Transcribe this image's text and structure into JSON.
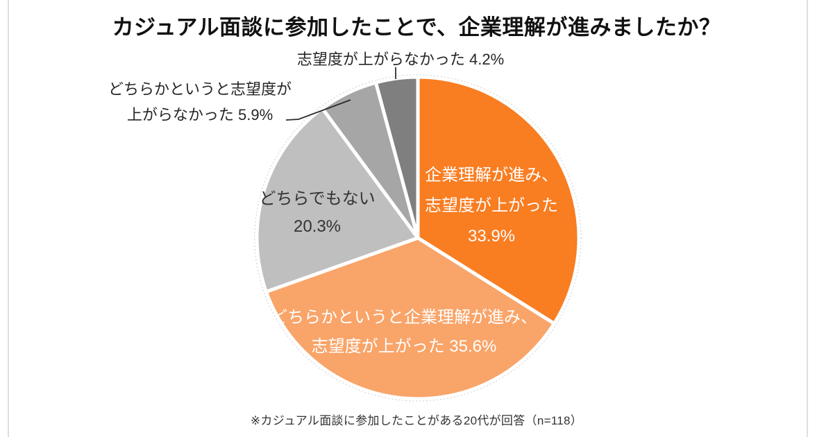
{
  "title": "カジュアル面談に参加したことで、企業理解が進みましたか？",
  "footnote": "※カジュアル面談に参加したことがある20代が回答（n=118）",
  "colors": {
    "background": "#FFFFFF",
    "edge_line": "#DEDEDE",
    "slice_separator": "#FFFFFF",
    "outline_dashed": "#D6D6D6",
    "leader_line": "#404040"
  },
  "chart_data": {
    "type": "pie",
    "title": "カジュアル面談に参加したことで、企業理解が進みましたか？",
    "note": "※カジュアル面談に参加したことがある20代が回答（n=118）",
    "sample_n": 118,
    "start_angle_deg": 0,
    "direction": "clockwise",
    "legend_position": "none",
    "segments": [
      {
        "label": "企業理解が進み、志望度が上がった",
        "value": 33.9,
        "pct_label": "33.9%",
        "color": "#F97D21",
        "text_color": "#FFFFFF",
        "label_lines": [
          "企業理解が進み、",
          "志望度が上がった",
          "33.9%"
        ]
      },
      {
        "label": "どちらかというと企業理解が進み、志望度が上がった",
        "value": 35.6,
        "pct_label": "35.6%",
        "color": "#F9A469",
        "text_color": "#FFFFFF",
        "label_lines": [
          "どちらかというと企業理解が進み、",
          "志望度が上がった 35.6%"
        ]
      },
      {
        "label": "どちらでもない",
        "value": 20.3,
        "pct_label": "20.3%",
        "color": "#BFBFBF",
        "text_color": "#333333",
        "label_lines": [
          "どちらでもない",
          "20.3%"
        ]
      },
      {
        "label": "どちらかというと志望度が上がらなかった",
        "value": 5.9,
        "pct_label": "5.9%",
        "color": "#A6A6A6",
        "text_color": "#262626",
        "callout_lines": [
          "どちらかというと志望度が",
          "上がらなかった 5.9%"
        ]
      },
      {
        "label": "志望度が上がらなかった",
        "value": 4.2,
        "pct_label": "4.2%",
        "color": "#7F7F7F",
        "text_color": "#262626",
        "callout_lines": [
          "志望度が上がらなかった 4.2%"
        ]
      }
    ]
  }
}
